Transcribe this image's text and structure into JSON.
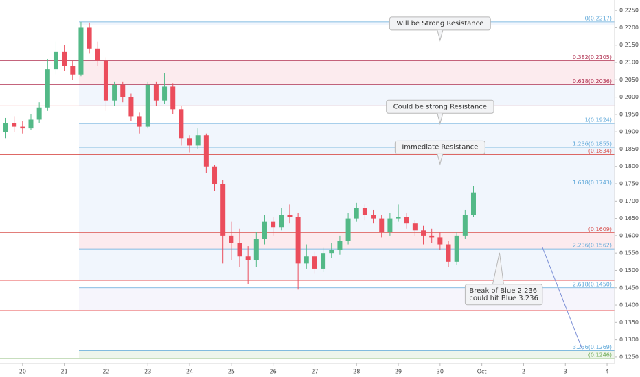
{
  "chart_data": {
    "type": "candlestick",
    "xlim": [
      -0.54,
      14.18
    ],
    "xticks": [
      {
        "value": 0,
        "label": "20"
      },
      {
        "value": 1,
        "label": "21"
      },
      {
        "value": 2,
        "label": "22"
      },
      {
        "value": 3,
        "label": "23"
      },
      {
        "value": 4,
        "label": "24"
      },
      {
        "value": 5,
        "label": "25"
      },
      {
        "value": 6,
        "label": "26"
      },
      {
        "value": 7,
        "label": "27"
      },
      {
        "value": 8,
        "label": "28"
      },
      {
        "value": 9,
        "label": "29"
      },
      {
        "value": 10,
        "label": "30"
      },
      {
        "value": 11,
        "label": "Oct"
      },
      {
        "value": 12,
        "label": "2"
      },
      {
        "value": 13,
        "label": "3"
      },
      {
        "value": 14,
        "label": "4"
      }
    ],
    "ylim": [
      0.1232,
      0.228
    ],
    "yticks": [
      {
        "value": 0.225,
        "label": "0.2250"
      },
      {
        "value": 0.22,
        "label": "0.2200"
      },
      {
        "value": 0.215,
        "label": "0.2150"
      },
      {
        "value": 0.21,
        "label": "0.2100"
      },
      {
        "value": 0.205,
        "label": "0.2050"
      },
      {
        "value": 0.2,
        "label": "0.2000"
      },
      {
        "value": 0.195,
        "label": "0.1950"
      },
      {
        "value": 0.19,
        "label": "0.1900"
      },
      {
        "value": 0.185,
        "label": "0.1850"
      },
      {
        "value": 0.18,
        "label": "0.1800"
      },
      {
        "value": 0.175,
        "label": "0.1750"
      },
      {
        "value": 0.17,
        "label": "0.1700"
      },
      {
        "value": 0.165,
        "label": "0.1650"
      },
      {
        "value": 0.16,
        "label": "0.1600"
      },
      {
        "value": 0.155,
        "label": "0.1550"
      },
      {
        "value": 0.15,
        "label": "0.1500"
      },
      {
        "value": 0.145,
        "label": "0.1450"
      },
      {
        "value": 0.14,
        "label": "0.1400"
      },
      {
        "value": 0.135,
        "label": "0.1350"
      },
      {
        "value": 0.13,
        "label": "0.1300"
      },
      {
        "value": 0.125,
        "label": "0.1250"
      }
    ],
    "up_color": "#53b987",
    "down_color": "#eb4d5c",
    "x": [
      -0.4,
      -0.2,
      0,
      0.2,
      0.4,
      0.6,
      0.8,
      1.0,
      1.2,
      1.4,
      1.6,
      1.8,
      2.0,
      2.2,
      2.4,
      2.6,
      2.8,
      3.0,
      3.2,
      3.4,
      3.6,
      3.8,
      4.0,
      4.2,
      4.4,
      4.6,
      4.8,
      5.0,
      5.2,
      5.4,
      5.6,
      5.8,
      6.0,
      6.2,
      6.4,
      6.6,
      6.8,
      7.0,
      7.2,
      7.4,
      7.6,
      7.8,
      8.0,
      8.2,
      8.4,
      8.6,
      8.8,
      9.0,
      9.2,
      9.4,
      9.6,
      9.8,
      10.0,
      10.2,
      10.4,
      10.6,
      10.8
    ],
    "ohlc": [
      [
        0.19,
        0.194,
        0.188,
        0.1925
      ],
      [
        0.1925,
        0.1945,
        0.19,
        0.1915
      ],
      [
        0.1915,
        0.193,
        0.1895,
        0.191
      ],
      [
        0.191,
        0.195,
        0.1905,
        0.1935
      ],
      [
        0.1935,
        0.1985,
        0.1925,
        0.197
      ],
      [
        0.197,
        0.211,
        0.196,
        0.208
      ],
      [
        0.208,
        0.216,
        0.2065,
        0.213
      ],
      [
        0.213,
        0.215,
        0.2075,
        0.209
      ],
      [
        0.209,
        0.2105,
        0.205,
        0.2065
      ],
      [
        0.2065,
        0.2217,
        0.206,
        0.22
      ],
      [
        0.22,
        0.2215,
        0.2125,
        0.214
      ],
      [
        0.214,
        0.216,
        0.209,
        0.2105
      ],
      [
        0.2105,
        0.2115,
        0.196,
        0.199
      ],
      [
        0.199,
        0.2045,
        0.1975,
        0.2035
      ],
      [
        0.2035,
        0.2045,
        0.1985,
        0.2
      ],
      [
        0.2,
        0.201,
        0.193,
        0.1945
      ],
      [
        0.1945,
        0.1955,
        0.1895,
        0.1915
      ],
      [
        0.1915,
        0.2045,
        0.191,
        0.2035
      ],
      [
        0.2035,
        0.2045,
        0.1975,
        0.199
      ],
      [
        0.199,
        0.207,
        0.198,
        0.203
      ],
      [
        0.203,
        0.204,
        0.195,
        0.1965
      ],
      [
        0.1965,
        0.1975,
        0.186,
        0.188
      ],
      [
        0.188,
        0.189,
        0.184,
        0.186
      ],
      [
        0.186,
        0.191,
        0.185,
        0.189
      ],
      [
        0.189,
        0.1895,
        0.178,
        0.18
      ],
      [
        0.18,
        0.1805,
        0.173,
        0.175
      ],
      [
        0.175,
        0.176,
        0.152,
        0.16
      ],
      [
        0.16,
        0.164,
        0.153,
        0.158
      ],
      [
        0.158,
        0.162,
        0.151,
        0.154
      ],
      [
        0.154,
        0.157,
        0.146,
        0.153
      ],
      [
        0.153,
        0.161,
        0.151,
        0.159
      ],
      [
        0.159,
        0.166,
        0.1575,
        0.164
      ],
      [
        0.164,
        0.1655,
        0.16,
        0.1625
      ],
      [
        0.1625,
        0.168,
        0.1615,
        0.166
      ],
      [
        0.166,
        0.169,
        0.1635,
        0.1655
      ],
      [
        0.1655,
        0.1665,
        0.1445,
        0.152
      ],
      [
        0.152,
        0.1575,
        0.1505,
        0.154
      ],
      [
        0.154,
        0.1555,
        0.149,
        0.1505
      ],
      [
        0.1505,
        0.1565,
        0.1495,
        0.155
      ],
      [
        0.155,
        0.158,
        0.1535,
        0.156
      ],
      [
        0.156,
        0.16,
        0.1545,
        0.1585
      ],
      [
        0.1585,
        0.1665,
        0.1575,
        0.165
      ],
      [
        0.165,
        0.1695,
        0.164,
        0.168
      ],
      [
        0.168,
        0.169,
        0.1645,
        0.166
      ],
      [
        0.166,
        0.1675,
        0.1635,
        0.165
      ],
      [
        0.165,
        0.166,
        0.1595,
        0.161
      ],
      [
        0.161,
        0.1665,
        0.16,
        0.165
      ],
      [
        0.165,
        0.169,
        0.164,
        0.1655
      ],
      [
        0.1655,
        0.1665,
        0.162,
        0.1635
      ],
      [
        0.1635,
        0.1645,
        0.16,
        0.1615
      ],
      [
        0.1615,
        0.163,
        0.1575,
        0.16
      ],
      [
        0.16,
        0.162,
        0.158,
        0.1595
      ],
      [
        0.1595,
        0.161,
        0.156,
        0.1575
      ],
      [
        0.1575,
        0.1585,
        0.151,
        0.1525
      ],
      [
        0.1525,
        0.161,
        0.1515,
        0.16
      ],
      [
        0.16,
        0.1675,
        0.159,
        0.166
      ],
      [
        0.166,
        0.1743,
        0.1655,
        0.1725
      ]
    ],
    "levels": [
      {
        "value": 0.2217,
        "label": "0(0.2217)",
        "color": "#5fa8d9",
        "fill": "#eef4fc"
      },
      {
        "value": 0.2208,
        "color": "#f08c8c"
      },
      {
        "value": 0.2105,
        "label": "0.382(0.2105)",
        "color": "#b03050",
        "fill": "#fbe6ea"
      },
      {
        "value": 0.2036,
        "label": "0.618(0.2036)",
        "color": "#b03050",
        "fill": "#eef4fc"
      },
      {
        "value": 0.1975,
        "color": "#f08c8c"
      },
      {
        "value": 0.1924,
        "label": "1(0.1924)",
        "color": "#5fa8d9",
        "fill": "#eef4fc"
      },
      {
        "value": 0.1855,
        "label": "1.236(0.1855)",
        "color": "#5fa8d9",
        "fill": "#e8f1fb"
      },
      {
        "value": 0.1834,
        "label": "(0.1834)",
        "color": "#d9534f",
        "fill": "#eef4fc"
      },
      {
        "value": 0.1743,
        "label": "1.618(0.1743)",
        "color": "#5fa8d9",
        "fill": "#eef4fc"
      },
      {
        "value": 0.1609,
        "label": "(0.1609)",
        "color": "#d9534f",
        "fill": "#fbe6ea"
      },
      {
        "value": 0.1562,
        "label": "2.236(0.1562)",
        "color": "#5fa8d9",
        "fill": "#eef4fc"
      },
      {
        "value": 0.147,
        "color": "#f08c8c"
      },
      {
        "value": 0.145,
        "label": "2.618(0.1450)",
        "color": "#5fa8d9",
        "fill": "#f4f3fb"
      },
      {
        "value": 0.1385,
        "color": "#f08c8c"
      },
      {
        "value": 0.1269,
        "label": "3.236(0.1269)",
        "color": "#5fa8d9",
        "fill": "#eaf3e6"
      },
      {
        "value": 0.1246,
        "label": "(0.1246)",
        "color": "#6aa84f"
      }
    ],
    "annotations": [
      {
        "lines": [
          "Will be Strong Resistance"
        ],
        "x": 10.0,
        "y": 0.2213
      },
      {
        "lines": [
          "Could be strong Resistance"
        ],
        "x": 10.0,
        "y": 0.1973
      },
      {
        "lines": [
          "Immediate Resistance"
        ],
        "x": 10.0,
        "y": 0.1856
      },
      {
        "lines": [
          "Break of Blue 2.236",
          "could hit Blue 3.236"
        ],
        "x": 10.7,
        "y": 0.1442
      }
    ]
  }
}
